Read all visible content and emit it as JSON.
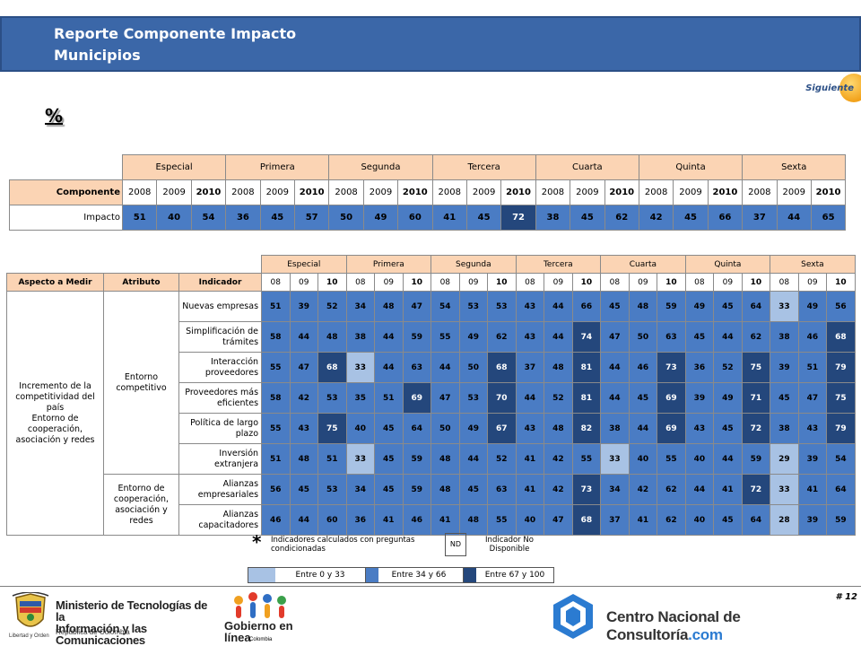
{
  "header": {
    "title": "Reporte Componente Impacto",
    "subtitle": "Municipios"
  },
  "nav": {
    "next_label": "Siguiente"
  },
  "percent_symbol": "%",
  "groups": [
    "Especial",
    "Primera",
    "Segunda",
    "Tercera",
    "Cuarta",
    "Quinta",
    "Sexta"
  ],
  "table1": {
    "row_header": "Componente",
    "years": [
      "2008",
      "2009",
      "2010"
    ],
    "row_label": "Impacto",
    "values": [
      {
        "v": 51,
        "level": 2
      },
      {
        "v": 40,
        "level": 2
      },
      {
        "v": 54,
        "level": 2
      },
      {
        "v": 36,
        "level": 2
      },
      {
        "v": 45,
        "level": 2
      },
      {
        "v": 57,
        "level": 2
      },
      {
        "v": 50,
        "level": 2
      },
      {
        "v": 49,
        "level": 2
      },
      {
        "v": 60,
        "level": 2
      },
      {
        "v": 41,
        "level": 2
      },
      {
        "v": 45,
        "level": 2
      },
      {
        "v": 72,
        "level": 3
      },
      {
        "v": 38,
        "level": 2
      },
      {
        "v": 45,
        "level": 2
      },
      {
        "v": 62,
        "level": 2
      },
      {
        "v": 42,
        "level": 2
      },
      {
        "v": 45,
        "level": 2
      },
      {
        "v": 66,
        "level": 2
      },
      {
        "v": 37,
        "level": 2
      },
      {
        "v": 44,
        "level": 2
      },
      {
        "v": 65,
        "level": 2
      }
    ]
  },
  "table2": {
    "headers": {
      "aspect": "Aspecto a Medir",
      "attribute": "Atributo",
      "indicator": "Indicador"
    },
    "years": [
      "08",
      "09",
      "10"
    ],
    "aspect_label": "Incremento de la competitividad del país\nEntorno de cooperación, asociación y redes",
    "attribute_1": "Entorno competitivo",
    "attribute_2": "Entorno de cooperación, asociación y redes",
    "rows": [
      {
        "indicator": "Nuevas empresas",
        "values": [
          {
            "v": 51,
            "level": 2
          },
          {
            "v": 39,
            "level": 2
          },
          {
            "v": 52,
            "level": 2
          },
          {
            "v": 34,
            "level": 2
          },
          {
            "v": 48,
            "level": 2
          },
          {
            "v": 47,
            "level": 2
          },
          {
            "v": 54,
            "level": 2
          },
          {
            "v": 53,
            "level": 2
          },
          {
            "v": 53,
            "level": 2
          },
          {
            "v": 43,
            "level": 2
          },
          {
            "v": 44,
            "level": 2
          },
          {
            "v": 66,
            "level": 2
          },
          {
            "v": 45,
            "level": 2
          },
          {
            "v": 48,
            "level": 2
          },
          {
            "v": 59,
            "level": 2
          },
          {
            "v": 49,
            "level": 2
          },
          {
            "v": 45,
            "level": 2
          },
          {
            "v": 64,
            "level": 2
          },
          {
            "v": 33,
            "level": 1
          },
          {
            "v": 49,
            "level": 2
          },
          {
            "v": 56,
            "level": 2
          }
        ]
      },
      {
        "indicator": "Simplificación de trámites",
        "values": [
          {
            "v": 58,
            "level": 2
          },
          {
            "v": 44,
            "level": 2
          },
          {
            "v": 48,
            "level": 2
          },
          {
            "v": 38,
            "level": 2
          },
          {
            "v": 44,
            "level": 2
          },
          {
            "v": 59,
            "level": 2
          },
          {
            "v": 55,
            "level": 2
          },
          {
            "v": 49,
            "level": 2
          },
          {
            "v": 62,
            "level": 2
          },
          {
            "v": 43,
            "level": 2
          },
          {
            "v": 44,
            "level": 2
          },
          {
            "v": 74,
            "level": 3
          },
          {
            "v": 47,
            "level": 2
          },
          {
            "v": 50,
            "level": 2
          },
          {
            "v": 63,
            "level": 2
          },
          {
            "v": 45,
            "level": 2
          },
          {
            "v": 44,
            "level": 2
          },
          {
            "v": 62,
            "level": 2
          },
          {
            "v": 38,
            "level": 2
          },
          {
            "v": 46,
            "level": 2
          },
          {
            "v": 68,
            "level": 3
          }
        ]
      },
      {
        "indicator": "Interacción proveedores",
        "values": [
          {
            "v": 55,
            "level": 2
          },
          {
            "v": 47,
            "level": 2
          },
          {
            "v": 68,
            "level": 3
          },
          {
            "v": 33,
            "level": 1
          },
          {
            "v": 44,
            "level": 2
          },
          {
            "v": 63,
            "level": 2
          },
          {
            "v": 44,
            "level": 2
          },
          {
            "v": 50,
            "level": 2
          },
          {
            "v": 68,
            "level": 3
          },
          {
            "v": 37,
            "level": 2
          },
          {
            "v": 48,
            "level": 2
          },
          {
            "v": 81,
            "level": 3
          },
          {
            "v": 44,
            "level": 2
          },
          {
            "v": 46,
            "level": 2
          },
          {
            "v": 73,
            "level": 3
          },
          {
            "v": 36,
            "level": 2
          },
          {
            "v": 52,
            "level": 2
          },
          {
            "v": 75,
            "level": 3
          },
          {
            "v": 39,
            "level": 2
          },
          {
            "v": 51,
            "level": 2
          },
          {
            "v": 79,
            "level": 3
          }
        ]
      },
      {
        "indicator": "Proveedores más eficientes",
        "values": [
          {
            "v": 58,
            "level": 2
          },
          {
            "v": 42,
            "level": 2
          },
          {
            "v": 53,
            "level": 2
          },
          {
            "v": 35,
            "level": 2
          },
          {
            "v": 51,
            "level": 2
          },
          {
            "v": 69,
            "level": 3
          },
          {
            "v": 47,
            "level": 2
          },
          {
            "v": 53,
            "level": 2
          },
          {
            "v": 70,
            "level": 3
          },
          {
            "v": 44,
            "level": 2
          },
          {
            "v": 52,
            "level": 2
          },
          {
            "v": 81,
            "level": 3
          },
          {
            "v": 44,
            "level": 2
          },
          {
            "v": 45,
            "level": 2
          },
          {
            "v": 69,
            "level": 3
          },
          {
            "v": 39,
            "level": 2
          },
          {
            "v": 49,
            "level": 2
          },
          {
            "v": 71,
            "level": 3
          },
          {
            "v": 45,
            "level": 2
          },
          {
            "v": 47,
            "level": 2
          },
          {
            "v": 75,
            "level": 3
          }
        ]
      },
      {
        "indicator": "Política de largo plazo",
        "values": [
          {
            "v": 55,
            "level": 2
          },
          {
            "v": 43,
            "level": 2
          },
          {
            "v": 75,
            "level": 3
          },
          {
            "v": 40,
            "level": 2
          },
          {
            "v": 45,
            "level": 2
          },
          {
            "v": 64,
            "level": 2
          },
          {
            "v": 50,
            "level": 2
          },
          {
            "v": 49,
            "level": 2
          },
          {
            "v": 67,
            "level": 3
          },
          {
            "v": 43,
            "level": 2
          },
          {
            "v": 48,
            "level": 2
          },
          {
            "v": 82,
            "level": 3
          },
          {
            "v": 38,
            "level": 2
          },
          {
            "v": 44,
            "level": 2
          },
          {
            "v": 69,
            "level": 3
          },
          {
            "v": 43,
            "level": 2
          },
          {
            "v": 45,
            "level": 2
          },
          {
            "v": 72,
            "level": 3
          },
          {
            "v": 38,
            "level": 2
          },
          {
            "v": 43,
            "level": 2
          },
          {
            "v": 79,
            "level": 3
          }
        ]
      },
      {
        "indicator": "Inversión extranjera",
        "values": [
          {
            "v": 51,
            "level": 2
          },
          {
            "v": 48,
            "level": 2
          },
          {
            "v": 51,
            "level": 2
          },
          {
            "v": 33,
            "level": 1
          },
          {
            "v": 45,
            "level": 2
          },
          {
            "v": 59,
            "level": 2
          },
          {
            "v": 48,
            "level": 2
          },
          {
            "v": 44,
            "level": 2
          },
          {
            "v": 52,
            "level": 2
          },
          {
            "v": 41,
            "level": 2
          },
          {
            "v": 42,
            "level": 2
          },
          {
            "v": 55,
            "level": 2
          },
          {
            "v": 33,
            "level": 1
          },
          {
            "v": 40,
            "level": 2
          },
          {
            "v": 55,
            "level": 2
          },
          {
            "v": 40,
            "level": 2
          },
          {
            "v": 44,
            "level": 2
          },
          {
            "v": 59,
            "level": 2
          },
          {
            "v": 29,
            "level": 1
          },
          {
            "v": 39,
            "level": 2
          },
          {
            "v": 54,
            "level": 2
          }
        ]
      },
      {
        "indicator": "Alianzas empresariales",
        "values": [
          {
            "v": 56,
            "level": 2
          },
          {
            "v": 45,
            "level": 2
          },
          {
            "v": 53,
            "level": 2
          },
          {
            "v": 34,
            "level": 2
          },
          {
            "v": 45,
            "level": 2
          },
          {
            "v": 59,
            "level": 2
          },
          {
            "v": 48,
            "level": 2
          },
          {
            "v": 45,
            "level": 2
          },
          {
            "v": 63,
            "level": 2
          },
          {
            "v": 41,
            "level": 2
          },
          {
            "v": 42,
            "level": 2
          },
          {
            "v": 73,
            "level": 3
          },
          {
            "v": 34,
            "level": 2
          },
          {
            "v": 42,
            "level": 2
          },
          {
            "v": 62,
            "level": 2
          },
          {
            "v": 44,
            "level": 2
          },
          {
            "v": 41,
            "level": 2
          },
          {
            "v": 72,
            "level": 3
          },
          {
            "v": 33,
            "level": 1
          },
          {
            "v": 41,
            "level": 2
          },
          {
            "v": 64,
            "level": 2
          }
        ]
      },
      {
        "indicator": "Alianzas capacitadores",
        "values": [
          {
            "v": 46,
            "level": 2
          },
          {
            "v": 44,
            "level": 2
          },
          {
            "v": 60,
            "level": 2
          },
          {
            "v": 36,
            "level": 2
          },
          {
            "v": 41,
            "level": 2
          },
          {
            "v": 46,
            "level": 2
          },
          {
            "v": 41,
            "level": 2
          },
          {
            "v": 48,
            "level": 2
          },
          {
            "v": 55,
            "level": 2
          },
          {
            "v": 40,
            "level": 2
          },
          {
            "v": 47,
            "level": 2
          },
          {
            "v": 68,
            "level": 3
          },
          {
            "v": 37,
            "level": 2
          },
          {
            "v": 41,
            "level": 2
          },
          {
            "v": 62,
            "level": 2
          },
          {
            "v": 40,
            "level": 2
          },
          {
            "v": 45,
            "level": 2
          },
          {
            "v": 64,
            "level": 2
          },
          {
            "v": 28,
            "level": 1
          },
          {
            "v": 39,
            "level": 2
          },
          {
            "v": 59,
            "level": 2
          }
        ]
      }
    ]
  },
  "legend": {
    "star": "*",
    "star_note": "Indicadores calculados con preguntas condicionadas",
    "nd": "ND",
    "nd_note": "Indicador No Disponible",
    "scale": [
      {
        "label": "Entre 0 y 33",
        "color": "#a8c2e4"
      },
      {
        "label": "Entre 34 y 66",
        "color": "#4a7cc4"
      },
      {
        "label": "Entre 67 y 100",
        "color": "#24477c"
      }
    ]
  },
  "footer": {
    "page": "# 12",
    "ministry_line1": "Ministerio de Tecnologías de la",
    "ministry_line2": "Información y las Comunicaciones",
    "ministry_sub": "República de Colombia",
    "ministry_motto": "Libertad y Orden",
    "gel_line1": "Gobierno en línea",
    "gel_sub": "Colombia",
    "cnc_name": "Centro Nacional de Consultoría",
    "cnc_domain": ".com"
  },
  "colors": {
    "header_bg": "#3b67a8",
    "table_header_bg": "#fbd4b4",
    "accent_orange": "#f2a21b"
  }
}
